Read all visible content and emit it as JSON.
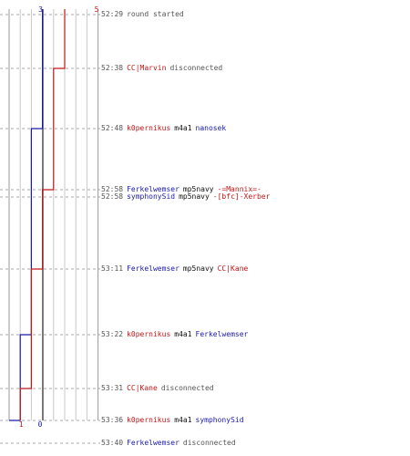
{
  "chart_data": {
    "type": "line",
    "title": "",
    "xlabel": "",
    "ylabel": "",
    "teams": {
      "blue": "#1a1aa8",
      "red": "#c01818"
    },
    "start_scores": {
      "blue": "3",
      "red": "5"
    },
    "end_scores": {
      "blue": "0",
      "red": "1"
    },
    "timestamps": [
      "52:29",
      "52:38",
      "52:48",
      "52:58",
      "52:58",
      "53:11",
      "53:22",
      "53:31",
      "53:36",
      "53:40"
    ],
    "series": [
      {
        "team": "blue",
        "values": [
          3,
          3,
          2,
          2,
          2,
          2,
          1,
          1,
          0,
          0
        ]
      },
      {
        "team": "red",
        "values": [
          5,
          4,
          4,
          3,
          3,
          2,
          2,
          1,
          1,
          1
        ]
      }
    ]
  },
  "events": [
    {
      "time": "52:29",
      "parts": [
        {
          "t": "round started",
          "c": "msg"
        }
      ]
    },
    {
      "time": "52:38",
      "parts": [
        {
          "t": "CC|Marvin",
          "c": "red"
        },
        {
          "t": "disconnected",
          "c": "msg"
        }
      ]
    },
    {
      "time": "52:48",
      "parts": [
        {
          "t": "k0pernikus",
          "c": "red"
        },
        {
          "t": "m4a1",
          "c": "plain"
        },
        {
          "t": "nanosek",
          "c": "blue"
        }
      ]
    },
    {
      "time": "52:58",
      "parts": [
        {
          "t": "Ferkelwemser",
          "c": "blue"
        },
        {
          "t": "mp5navy",
          "c": "plain"
        },
        {
          "t": "-=Mannix=-",
          "c": "red"
        }
      ]
    },
    {
      "time": "52:58",
      "parts": [
        {
          "t": "symphonySid",
          "c": "blue"
        },
        {
          "t": "mp5navy",
          "c": "plain"
        },
        {
          "t": "-[bfc]-Xerber",
          "c": "red"
        }
      ]
    },
    {
      "time": "53:11",
      "parts": [
        {
          "t": "Ferkelwemser",
          "c": "blue"
        },
        {
          "t": "mp5navy",
          "c": "plain"
        },
        {
          "t": "CC|Kane",
          "c": "red"
        }
      ]
    },
    {
      "time": "53:22",
      "parts": [
        {
          "t": "k0pernikus",
          "c": "red"
        },
        {
          "t": "m4a1",
          "c": "plain"
        },
        {
          "t": "Ferkelwemser",
          "c": "blue"
        }
      ]
    },
    {
      "time": "53:31",
      "parts": [
        {
          "t": "CC|Kane",
          "c": "red"
        },
        {
          "t": "disconnected",
          "c": "msg"
        }
      ]
    },
    {
      "time": "53:36",
      "parts": [
        {
          "t": "k0pernikus",
          "c": "red"
        },
        {
          "t": "m4a1",
          "c": "plain"
        },
        {
          "t": "symphonySid",
          "c": "blue"
        }
      ]
    },
    {
      "time": "53:40",
      "parts": [
        {
          "t": "Ferkelwemser",
          "c": "blue"
        },
        {
          "t": "disconnected",
          "c": "msg"
        }
      ]
    }
  ]
}
